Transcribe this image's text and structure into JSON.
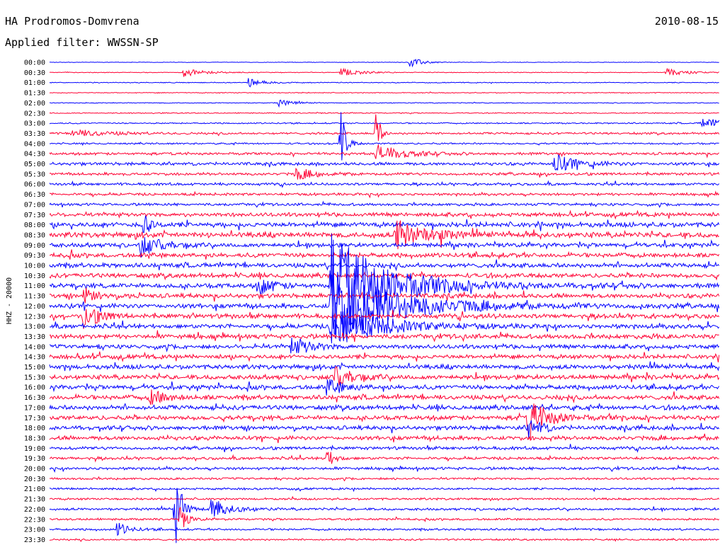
{
  "header": {
    "station": "HA Prodromos-Domvrena",
    "filter": "Applied filter: WWSSN-SP",
    "date": "2010-08-15"
  },
  "chart_data": {
    "type": "line",
    "title": "HA Prodromos-Domvrena",
    "subtitle": "Applied filter: WWSSN-SP",
    "ylabel": "HHZ - 20000",
    "xlabel": "",
    "row_labels": [
      "00:00",
      "00:30",
      "01:00",
      "01:30",
      "02:00",
      "02:30",
      "03:00",
      "03:30",
      "04:00",
      "04:30",
      "05:00",
      "05:30",
      "06:00",
      "06:30",
      "07:00",
      "07:30",
      "08:00",
      "08:30",
      "09:00",
      "09:30",
      "10:00",
      "10:30",
      "11:00",
      "11:30",
      "12:00",
      "12:30",
      "13:00",
      "13:30",
      "14:00",
      "14:30",
      "15:00",
      "15:30",
      "16:00",
      "16:30",
      "17:00",
      "17:30",
      "18:00",
      "18:30",
      "19:00",
      "19:30",
      "20:00",
      "20:30",
      "21:00",
      "21:30",
      "22:00",
      "22:30",
      "23:00",
      "23:30"
    ],
    "row_interval_minutes": 30,
    "series_colors": [
      "#0000ff",
      "#ff0033"
    ],
    "row_noise": [
      0.3,
      0.4,
      0.5,
      0.5,
      0.5,
      0.6,
      0.8,
      1.2,
      1.0,
      1.5,
      1.8,
      1.6,
      1.5,
      1.5,
      1.5,
      2.2,
      2.8,
      3.0,
      2.4,
      2.6,
      2.6,
      2.6,
      2.8,
      2.6,
      2.8,
      2.6,
      2.6,
      2.6,
      2.4,
      2.4,
      2.6,
      2.6,
      2.6,
      2.6,
      2.6,
      2.6,
      2.4,
      2.4,
      1.8,
      1.6,
      1.6,
      1.2,
      1.2,
      1.2,
      1.4,
      1.2,
      1.2,
      1.0
    ],
    "events": [
      {
        "row": 0,
        "min": 16.1,
        "amp": 8,
        "dur": 0.5
      },
      {
        "row": 1,
        "min": 6.0,
        "amp": 6,
        "dur": 0.8
      },
      {
        "row": 1,
        "min": 13.0,
        "amp": 6,
        "dur": 0.8
      },
      {
        "row": 1,
        "min": 27.6,
        "amp": 6,
        "dur": 0.8
      },
      {
        "row": 2,
        "min": 8.9,
        "amp": 6,
        "dur": 0.6
      },
      {
        "row": 4,
        "min": 10.2,
        "amp": 5,
        "dur": 0.6
      },
      {
        "row": 6,
        "min": 29.2,
        "amp": 6,
        "dur": 2.0
      },
      {
        "row": 7,
        "min": 1.0,
        "amp": 5,
        "dur": 1.5
      },
      {
        "row": 7,
        "min": 14.6,
        "amp": 50,
        "dur": 0.15
      },
      {
        "row": 8,
        "min": 13.0,
        "amp": 70,
        "dur": 0.2
      },
      {
        "row": 9,
        "min": 14.6,
        "amp": 14,
        "dur": 1.0
      },
      {
        "row": 10,
        "min": 22.6,
        "amp": 14,
        "dur": 1.0
      },
      {
        "row": 11,
        "min": 11.0,
        "amp": 8,
        "dur": 0.8
      },
      {
        "row": 16,
        "min": 4.2,
        "amp": 30,
        "dur": 0.2
      },
      {
        "row": 17,
        "min": 15.5,
        "amp": 24,
        "dur": 1.0
      },
      {
        "row": 17,
        "min": 17.5,
        "amp": 16,
        "dur": 0.2
      },
      {
        "row": 18,
        "min": 4.0,
        "amp": 16,
        "dur": 0.8
      },
      {
        "row": 19,
        "min": 30.0,
        "amp": 10,
        "dur": 0.3
      },
      {
        "row": 22,
        "min": 12.6,
        "amp": 80,
        "dur": 2.2
      },
      {
        "row": 22,
        "min": 9.3,
        "amp": 14,
        "dur": 0.6
      },
      {
        "row": 23,
        "min": 1.5,
        "amp": 12,
        "dur": 0.5
      },
      {
        "row": 25,
        "min": 1.5,
        "amp": 20,
        "dur": 0.6
      },
      {
        "row": 24,
        "min": 12.6,
        "amp": 60,
        "dur": 2.5
      },
      {
        "row": 26,
        "min": 12.6,
        "amp": 30,
        "dur": 2.0
      },
      {
        "row": 28,
        "min": 10.8,
        "amp": 14,
        "dur": 0.8
      },
      {
        "row": 31,
        "min": 12.7,
        "amp": 14,
        "dur": 0.8
      },
      {
        "row": 32,
        "min": 12.4,
        "amp": 10,
        "dur": 0.8
      },
      {
        "row": 33,
        "min": 4.5,
        "amp": 12,
        "dur": 0.6
      },
      {
        "row": 35,
        "min": 21.4,
        "amp": 30,
        "dur": 0.8
      },
      {
        "row": 36,
        "min": 21.4,
        "amp": 16,
        "dur": 0.5
      },
      {
        "row": 39,
        "min": 12.4,
        "amp": 14,
        "dur": 0.3
      },
      {
        "row": 44,
        "min": 5.6,
        "amp": 60,
        "dur": 0.3
      },
      {
        "row": 44,
        "min": 7.2,
        "amp": 14,
        "dur": 0.8
      },
      {
        "row": 45,
        "min": 5.8,
        "amp": 20,
        "dur": 0.3
      },
      {
        "row": 46,
        "min": 3.0,
        "amp": 10,
        "dur": 0.5
      }
    ]
  }
}
